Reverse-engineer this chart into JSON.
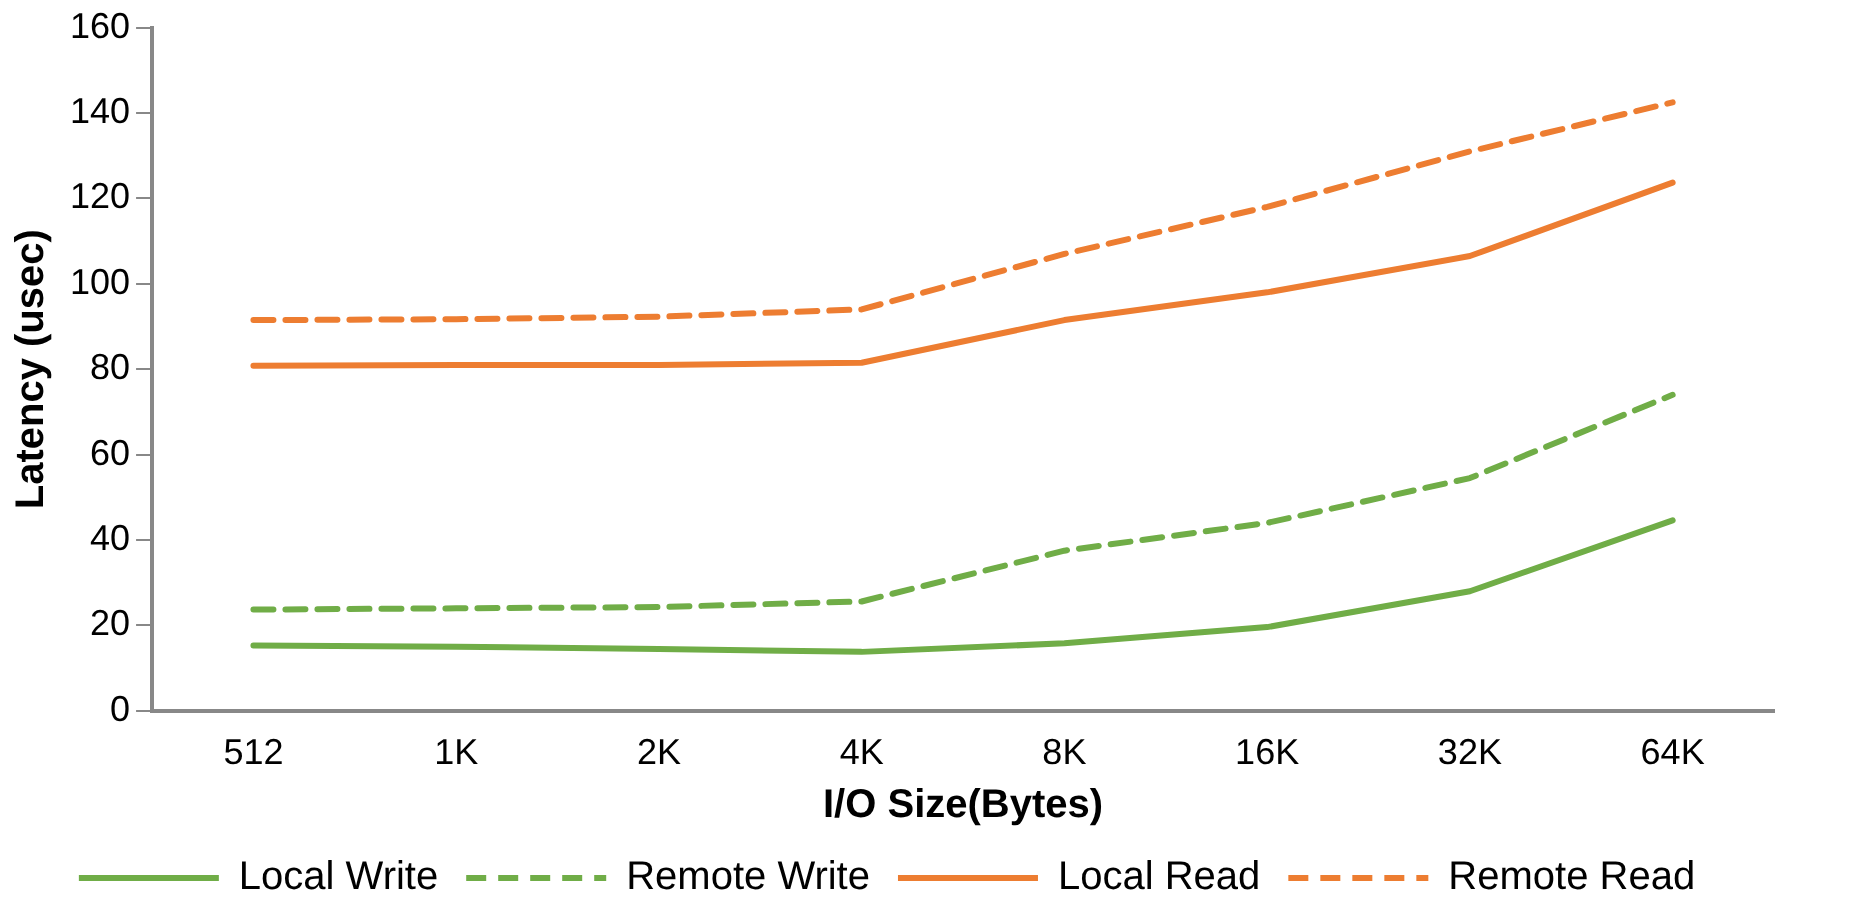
{
  "chart_data": {
    "type": "line",
    "xlabel": "I/O Size(Bytes)",
    "ylabel": "Latency (usec)",
    "categories": [
      "512",
      "1K",
      "2K",
      "4K",
      "8K",
      "16K",
      "32K",
      "64K"
    ],
    "ylim": [
      0,
      160
    ],
    "yticks": [
      0,
      20,
      40,
      60,
      80,
      100,
      120,
      140,
      160
    ],
    "grid": false,
    "legend": "bottom",
    "marker": "none",
    "series": [
      {
        "name": "Local Write",
        "color": "#70ad47",
        "line_style": "solid",
        "values": [
          15.3,
          15,
          14.5,
          13.8,
          15.8,
          19.6,
          28,
          44.6
        ]
      },
      {
        "name": "Remote Write",
        "color": "#70ad47",
        "line_style": "dashed",
        "values": [
          23.7,
          24,
          24.3,
          25.6,
          37.5,
          44,
          54.5,
          74
        ]
      },
      {
        "name": "Local Read",
        "color": "#ed7d31",
        "line_style": "solid",
        "values": [
          80.8,
          81,
          81,
          81.5,
          91.5,
          98,
          106.5,
          123.7
        ]
      },
      {
        "name": "Remote Read",
        "color": "#ed7d31",
        "line_style": "dashed",
        "values": [
          91.5,
          91.7,
          92.3,
          94,
          107,
          118,
          131,
          142.5
        ]
      }
    ]
  }
}
